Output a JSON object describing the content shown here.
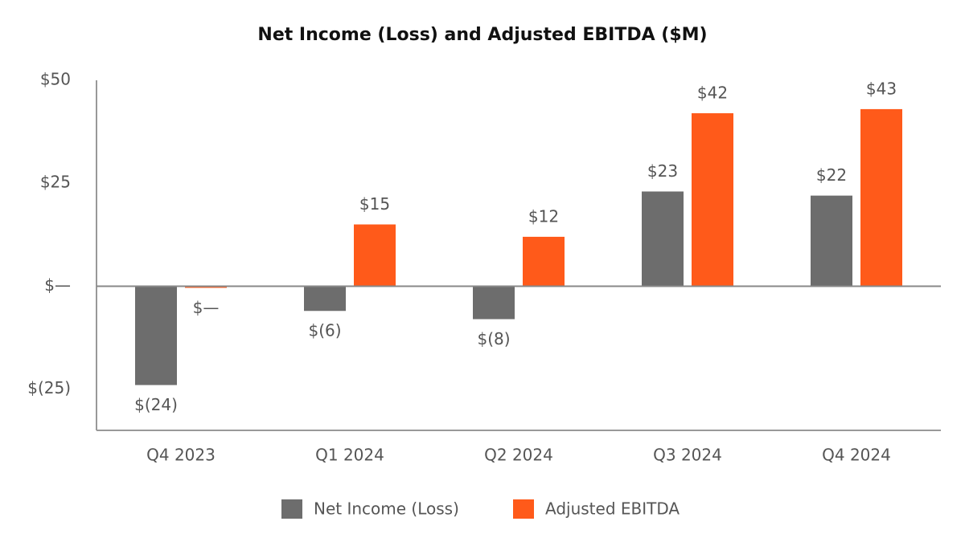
{
  "chart_data": {
    "type": "bar",
    "title": "Net Income (Loss) and Adjusted EBITDA ($M)",
    "categories": [
      "Q4 2023",
      "Q1 2024",
      "Q2 2024",
      "Q3 2024",
      "Q4 2024"
    ],
    "series": [
      {
        "name": "Net Income (Loss)",
        "color": "#6d6d6d",
        "values": [
          -24,
          -6,
          -8,
          23,
          22
        ],
        "value_labels": [
          "$(24)",
          "$(6)",
          "$(8)",
          "$23",
          "$22"
        ]
      },
      {
        "name": "Adjusted EBITDA",
        "color": "#ff5a1a",
        "values": [
          -0.4,
          15,
          12,
          42,
          43
        ],
        "value_labels": [
          "$—",
          "$15",
          "$12",
          "$42",
          "$43"
        ]
      }
    ],
    "ylim": [
      -35,
      50
    ],
    "yticks": [
      {
        "value": 50,
        "label": "$50"
      },
      {
        "value": 25,
        "label": "$25"
      },
      {
        "value": 0,
        "label": "$—"
      },
      {
        "value": -25,
        "label": "$(25)"
      }
    ],
    "grid": false,
    "legend": "bottom"
  }
}
